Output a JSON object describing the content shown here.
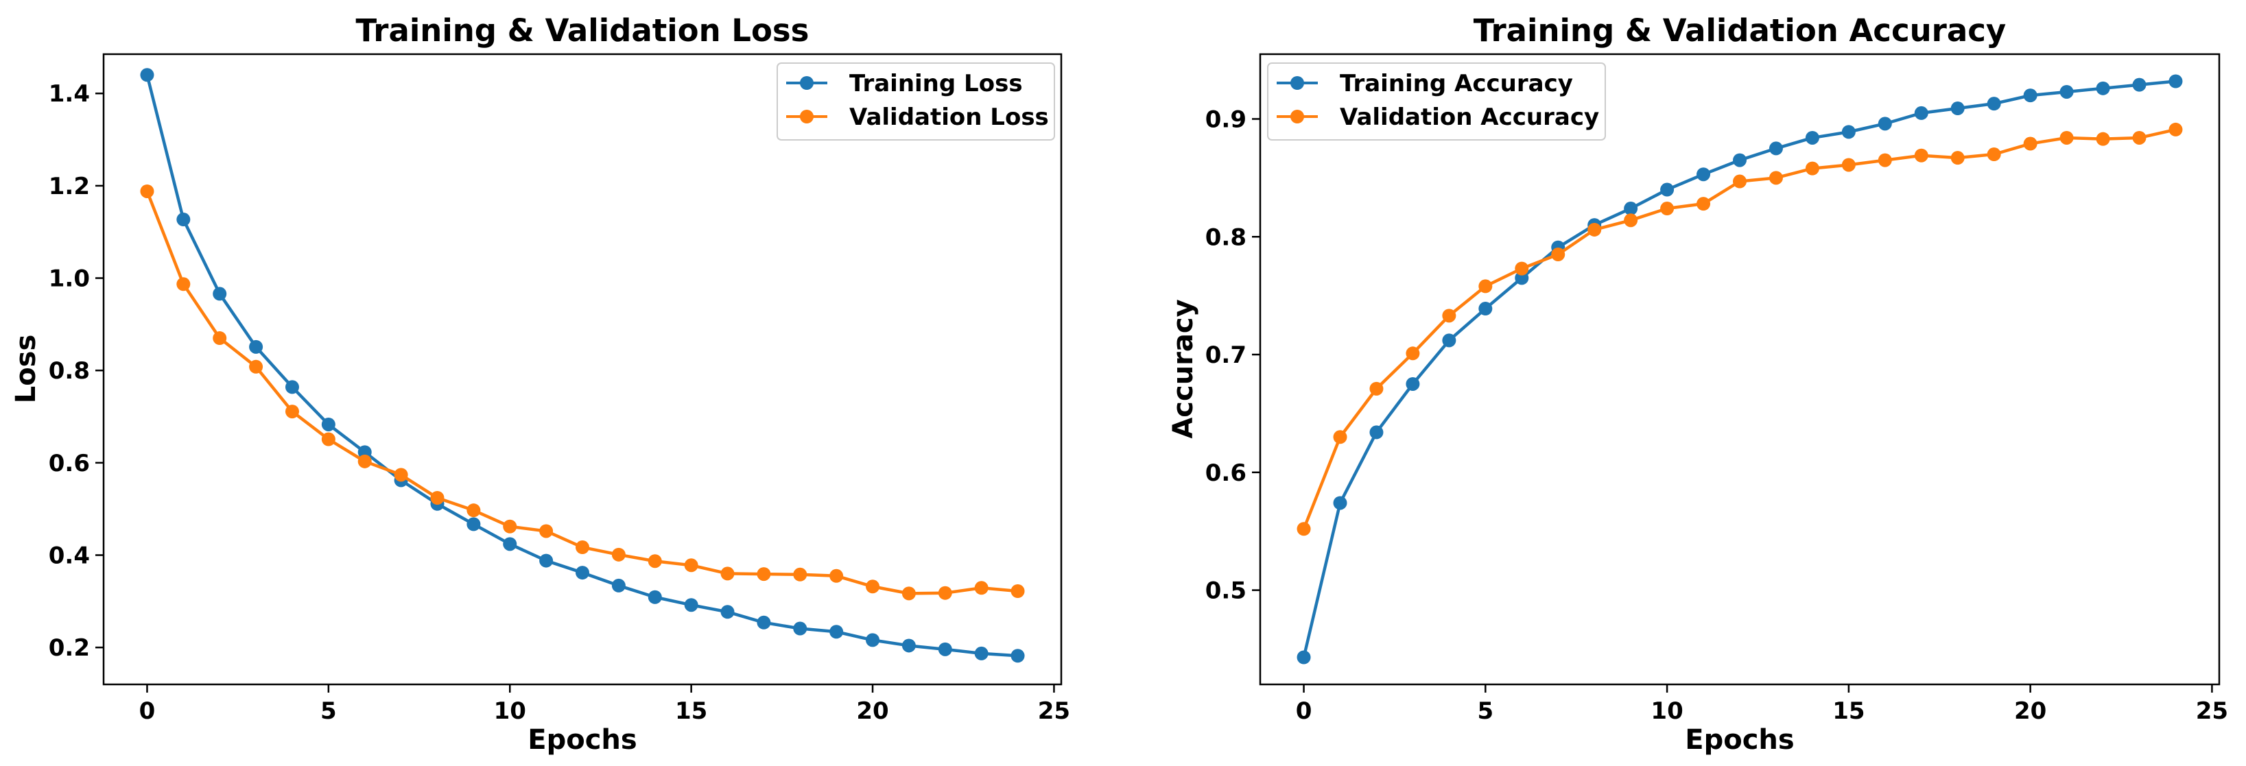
{
  "figure": {
    "description_free": true
  },
  "chart_data": [
    {
      "type": "line",
      "title": "Training & Validation Loss",
      "xlabel": "Epochs",
      "ylabel": "Loss",
      "xlim": [
        -1.2,
        25.2
      ],
      "ylim": [
        0.12,
        1.485
      ],
      "xticks": [
        0,
        5,
        10,
        15,
        20,
        25
      ],
      "xtick_labels": [
        "0",
        "5",
        "10",
        "15",
        "20",
        "25"
      ],
      "yticks": [
        0.2,
        0.4,
        0.6,
        0.8,
        1.0,
        1.2,
        1.4
      ],
      "ytick_labels": [
        "0.2",
        "0.4",
        "0.6",
        "0.8",
        "1.0",
        "1.2",
        "1.4"
      ],
      "grid": false,
      "legend_position": "top-right",
      "x": [
        0,
        1,
        2,
        3,
        4,
        5,
        6,
        7,
        8,
        9,
        10,
        11,
        12,
        13,
        14,
        15,
        16,
        17,
        18,
        19,
        20,
        21,
        22,
        23,
        24
      ],
      "series": [
        {
          "name": "Training Loss",
          "color": "#1f77b4",
          "values": [
            1.44,
            1.127,
            0.966,
            0.851,
            0.764,
            0.683,
            0.623,
            0.562,
            0.511,
            0.467,
            0.424,
            0.388,
            0.362,
            0.334,
            0.309,
            0.292,
            0.277,
            0.254,
            0.241,
            0.234,
            0.216,
            0.204,
            0.196,
            0.187,
            0.182
          ]
        },
        {
          "name": "Validation Loss",
          "color": "#ff7f0e",
          "values": [
            1.188,
            0.987,
            0.87,
            0.808,
            0.711,
            0.651,
            0.603,
            0.574,
            0.524,
            0.497,
            0.462,
            0.452,
            0.417,
            0.401,
            0.387,
            0.378,
            0.36,
            0.359,
            0.358,
            0.355,
            0.332,
            0.317,
            0.318,
            0.329,
            0.322
          ]
        }
      ]
    },
    {
      "type": "line",
      "title": "Training & Validation Accuracy",
      "xlabel": "Epochs",
      "ylabel": "Accuracy",
      "xlim": [
        -1.2,
        25.2
      ],
      "ylim": [
        0.42,
        0.955
      ],
      "xticks": [
        0,
        5,
        10,
        15,
        20,
        25
      ],
      "xtick_labels": [
        "0",
        "5",
        "10",
        "15",
        "20",
        "25"
      ],
      "yticks": [
        0.5,
        0.6,
        0.7,
        0.8,
        0.9
      ],
      "ytick_labels": [
        "0.5",
        "0.6",
        "0.7",
        "0.8",
        "0.9"
      ],
      "grid": false,
      "legend_position": "top-left",
      "x": [
        0,
        1,
        2,
        3,
        4,
        5,
        6,
        7,
        8,
        9,
        10,
        11,
        12,
        13,
        14,
        15,
        16,
        17,
        18,
        19,
        20,
        21,
        22,
        23,
        24
      ],
      "series": [
        {
          "name": "Training Accuracy",
          "color": "#1f77b4",
          "values": [
            0.443,
            0.574,
            0.634,
            0.675,
            0.712,
            0.739,
            0.765,
            0.791,
            0.81,
            0.824,
            0.84,
            0.853,
            0.865,
            0.875,
            0.884,
            0.889,
            0.896,
            0.905,
            0.909,
            0.913,
            0.92,
            0.923,
            0.926,
            0.929,
            0.932
          ]
        },
        {
          "name": "Validation Accuracy",
          "color": "#ff7f0e",
          "values": [
            0.552,
            0.63,
            0.671,
            0.701,
            0.733,
            0.758,
            0.773,
            0.785,
            0.806,
            0.814,
            0.824,
            0.828,
            0.847,
            0.85,
            0.858,
            0.861,
            0.865,
            0.869,
            0.867,
            0.87,
            0.879,
            0.884,
            0.883,
            0.884,
            0.891
          ]
        }
      ]
    }
  ]
}
